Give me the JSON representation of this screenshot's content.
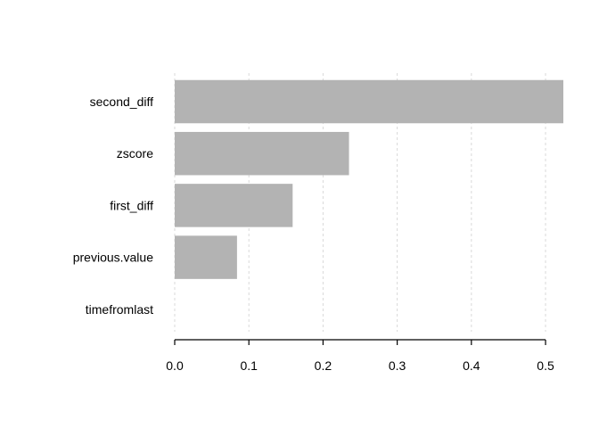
{
  "chart_data": {
    "type": "bar",
    "orientation": "horizontal",
    "categories": [
      "second_diff",
      "zscore",
      "first_diff",
      "previous.value",
      "timefromlast"
    ],
    "values": [
      0.524,
      0.235,
      0.159,
      0.084,
      0.0
    ],
    "xlim": [
      0,
      0.524
    ],
    "xticks": [
      "0.0",
      "0.1",
      "0.2",
      "0.3",
      "0.4",
      "0.5"
    ],
    "xtick_values": [
      0.0,
      0.1,
      0.2,
      0.3,
      0.4,
      0.5
    ],
    "title": "",
    "xlabel": "",
    "ylabel": "",
    "grid": "vertical dashed",
    "bar_color": "#b3b3b3",
    "grid_color": "#d9d9d9",
    "axis_color": "#000000"
  }
}
